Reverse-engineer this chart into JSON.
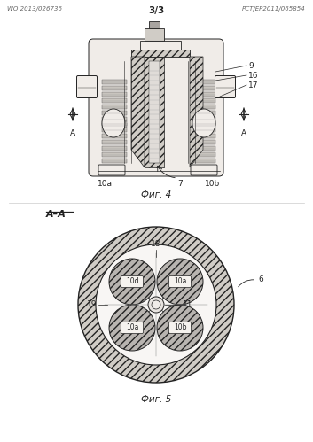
{
  "bg_color": "#ffffff",
  "header_left": "WO 2013/026736",
  "header_right": "PCT/EP2011/065854",
  "header_center": "3/3",
  "fig4_caption": "Фиг. 4",
  "fig5_caption": "Фиг. 5",
  "line_color": "#222222",
  "hatch_face": "#d0ccc6",
  "body_face": "#f0ece8",
  "filter_face": "#c8c4be",
  "dark_face": "#a8a4a0",
  "text_color": "#222222",
  "label_fontsize": 6.5,
  "caption_fontsize": 7.5
}
